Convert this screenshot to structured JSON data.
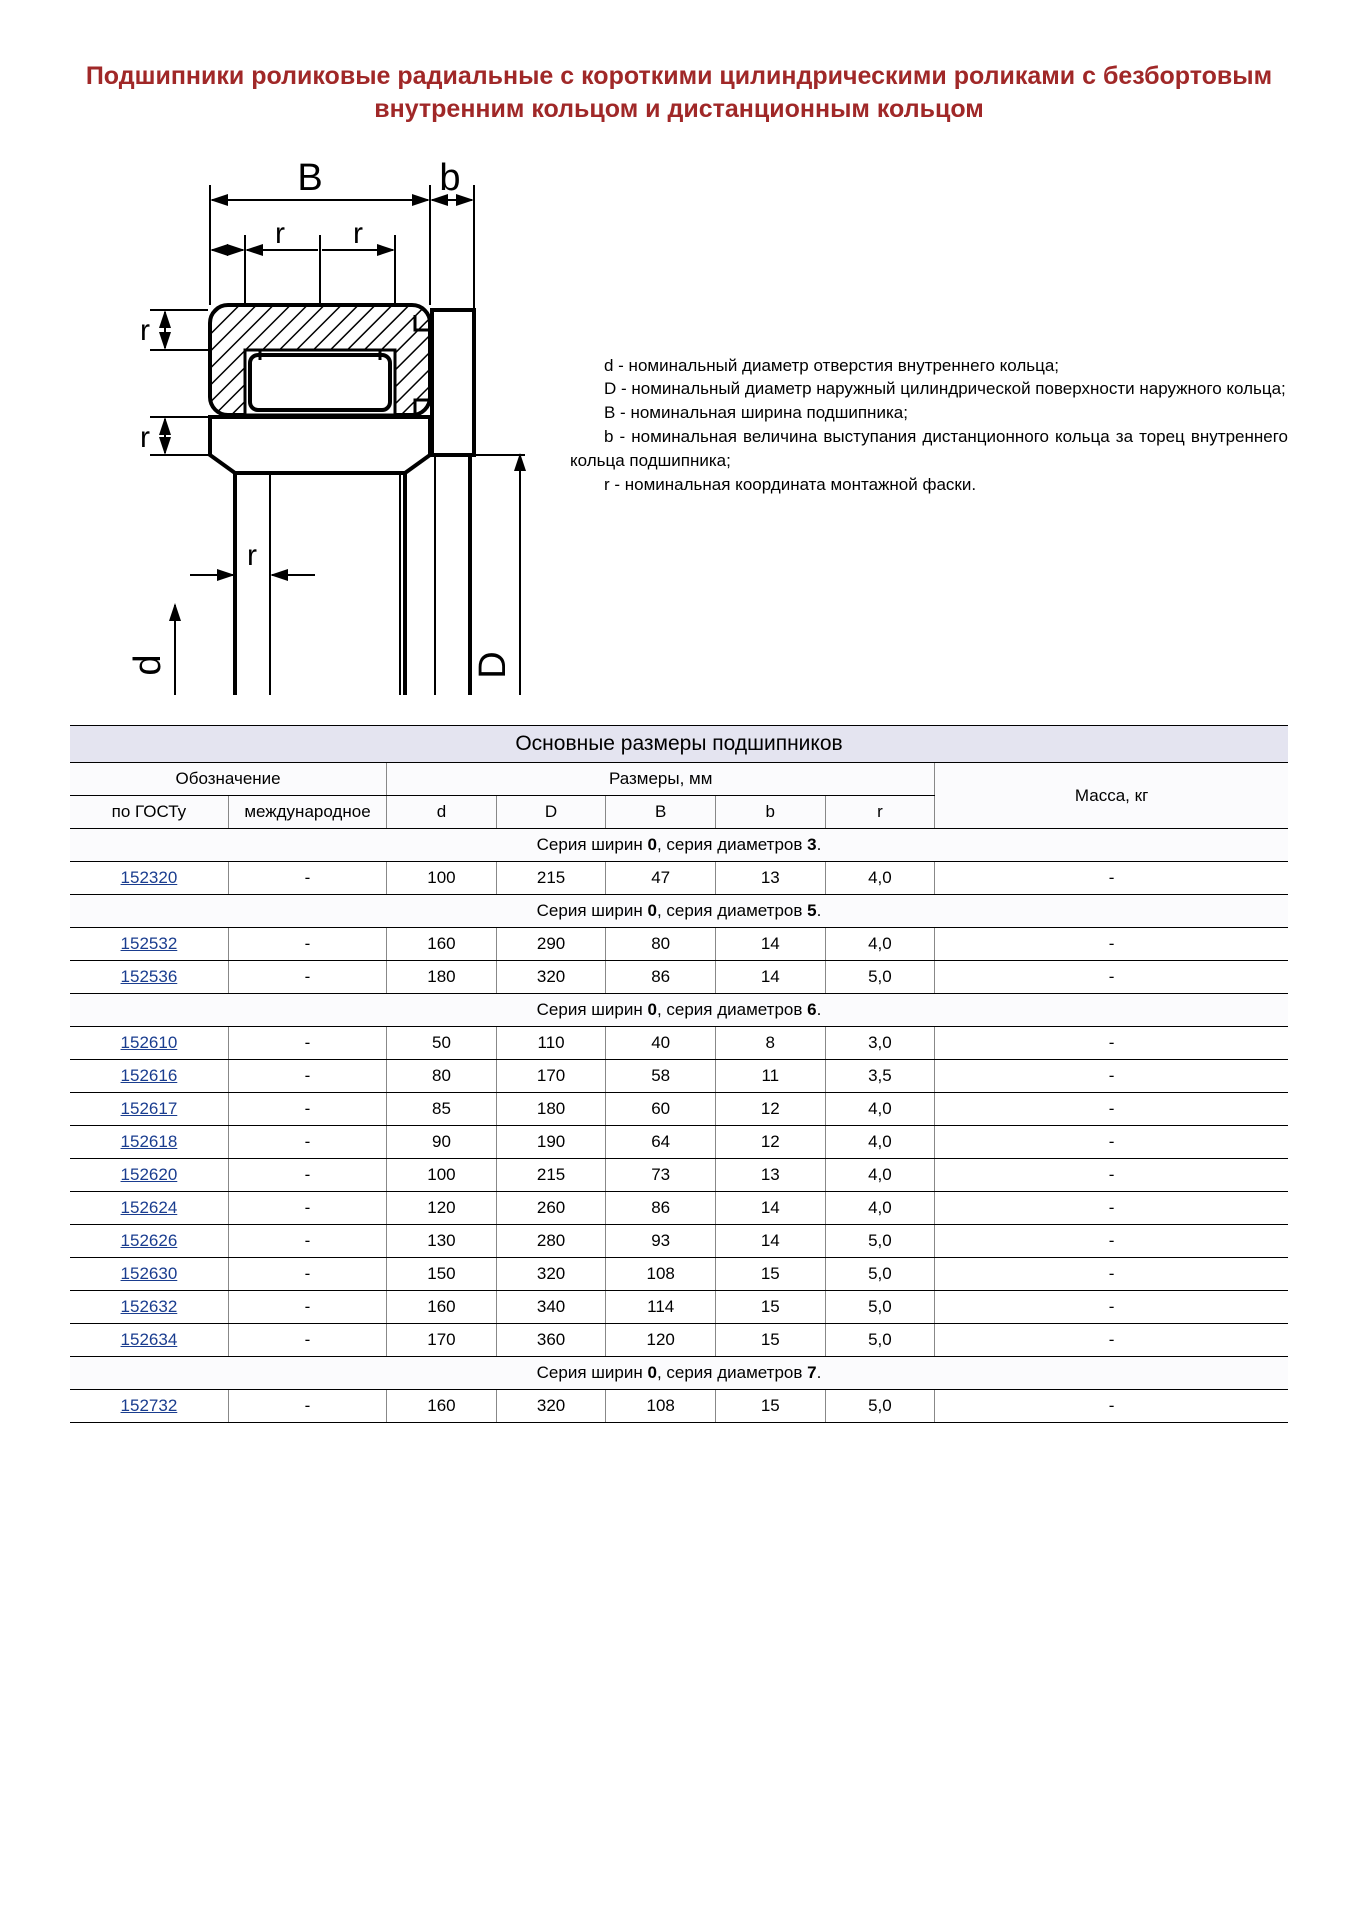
{
  "title": "Подшипники роликовые радиальные с короткими цилиндрическими роликами с безбортовым внутренним кольцом и дистанционным кольцом",
  "legend": {
    "d": "d - номинальный диаметр отверстия внутреннего кольца;",
    "D": "D - номинальный диаметр наружный цилиндрической поверхности наружного кольца;",
    "B": "B - номинальная ширина подшипника;",
    "b": "b - номинальная величина выступания дистанционного кольца за торец внутреннего кольца подшипника;",
    "r": "r - номинальная координата монтажной фаски."
  },
  "diagram": {
    "labels": {
      "B": "B",
      "b": "b",
      "r_top_left": "r",
      "r_top_right": "r",
      "r_side_upper": "r",
      "r_side_lower": "r",
      "r_bottom": "r",
      "d": "d",
      "D": "D"
    },
    "colors": {
      "stroke": "#000000",
      "hatch": "#000000",
      "fill": "#ffffff"
    },
    "stroke_width_thin": 2,
    "stroke_width_thick": 4
  },
  "table": {
    "title": "Основные размеры подшипников",
    "headers": {
      "designation": "Обозначение",
      "dimensions": "Размеры, мм",
      "mass": "Масса, кг",
      "gost": "по ГОСТу",
      "intl": "международное",
      "d": "d",
      "D": "D",
      "B": "B",
      "b": "b",
      "r": "r"
    },
    "sections": [
      {
        "series_prefix": "Серия ширин ",
        "series_w": "0",
        "series_mid": ", серия диаметров ",
        "series_d": "3",
        "series_suffix": ".",
        "rows": [
          {
            "gost": "152320",
            "intl": "-",
            "d": "100",
            "D": "215",
            "B": "47",
            "b": "13",
            "r": "4,0",
            "mass": "-"
          }
        ]
      },
      {
        "series_prefix": "Серия ширин ",
        "series_w": "0",
        "series_mid": ", серия диаметров ",
        "series_d": "5",
        "series_suffix": ".",
        "rows": [
          {
            "gost": "152532",
            "intl": "-",
            "d": "160",
            "D": "290",
            "B": "80",
            "b": "14",
            "r": "4,0",
            "mass": "-"
          },
          {
            "gost": "152536",
            "intl": "-",
            "d": "180",
            "D": "320",
            "B": "86",
            "b": "14",
            "r": "5,0",
            "mass": "-"
          }
        ]
      },
      {
        "series_prefix": "Серия ширин ",
        "series_w": "0",
        "series_mid": ", серия диаметров ",
        "series_d": "6",
        "series_suffix": ".",
        "rows": [
          {
            "gost": "152610",
            "intl": "-",
            "d": "50",
            "D": "110",
            "B": "40",
            "b": "8",
            "r": "3,0",
            "mass": "-"
          },
          {
            "gost": "152616",
            "intl": "-",
            "d": "80",
            "D": "170",
            "B": "58",
            "b": "11",
            "r": "3,5",
            "mass": "-"
          },
          {
            "gost": "152617",
            "intl": "-",
            "d": "85",
            "D": "180",
            "B": "60",
            "b": "12",
            "r": "4,0",
            "mass": "-"
          },
          {
            "gost": "152618",
            "intl": "-",
            "d": "90",
            "D": "190",
            "B": "64",
            "b": "12",
            "r": "4,0",
            "mass": "-"
          },
          {
            "gost": "152620",
            "intl": "-",
            "d": "100",
            "D": "215",
            "B": "73",
            "b": "13",
            "r": "4,0",
            "mass": "-"
          },
          {
            "gost": "152624",
            "intl": "-",
            "d": "120",
            "D": "260",
            "B": "86",
            "b": "14",
            "r": "4,0",
            "mass": "-"
          },
          {
            "gost": "152626",
            "intl": "-",
            "d": "130",
            "D": "280",
            "B": "93",
            "b": "14",
            "r": "5,0",
            "mass": "-"
          },
          {
            "gost": "152630",
            "intl": "-",
            "d": "150",
            "D": "320",
            "B": "108",
            "b": "15",
            "r": "5,0",
            "mass": "-"
          },
          {
            "gost": "152632",
            "intl": "-",
            "d": "160",
            "D": "340",
            "B": "114",
            "b": "15",
            "r": "5,0",
            "mass": "-"
          },
          {
            "gost": "152634",
            "intl": "-",
            "d": "170",
            "D": "360",
            "B": "120",
            "b": "15",
            "r": "5,0",
            "mass": "-"
          }
        ]
      },
      {
        "series_prefix": "Серия ширин ",
        "series_w": "0",
        "series_mid": ", серия диаметров ",
        "series_d": "7",
        "series_suffix": ".",
        "rows": [
          {
            "gost": "152732",
            "intl": "-",
            "d": "160",
            "D": "320",
            "B": "108",
            "b": "15",
            "r": "5,0",
            "mass": "-"
          }
        ]
      }
    ]
  },
  "colors": {
    "title": "#a02828",
    "header_bg": "#e4e4f0",
    "row_bg": "#fbfbfd",
    "link": "#1a3d8f",
    "border": "#000000"
  },
  "col_widths_pct": [
    13,
    13,
    9,
    9,
    9,
    9,
    9,
    29
  ]
}
